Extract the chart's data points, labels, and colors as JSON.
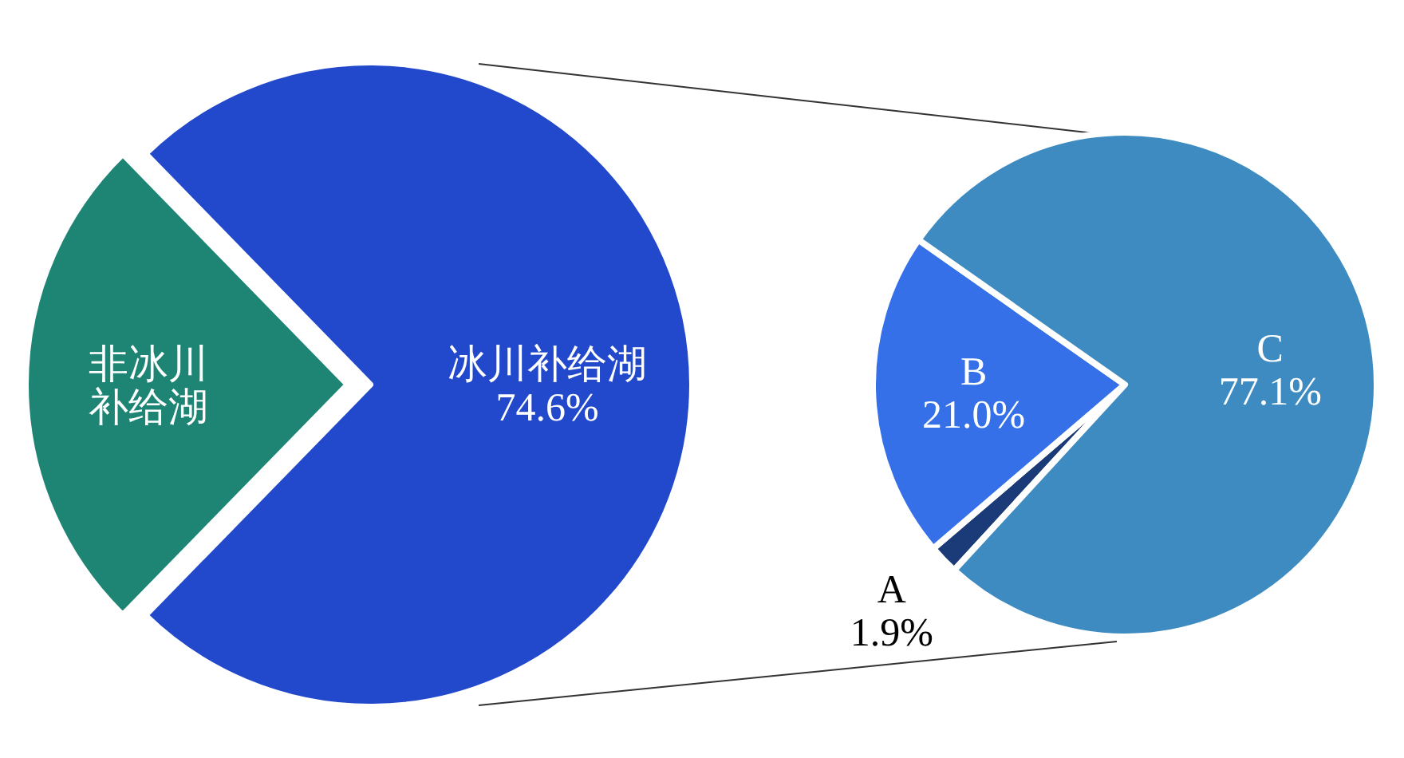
{
  "chart_data": [
    {
      "type": "pie",
      "categories": [
        "非冰川补给湖",
        "冰川补给湖"
      ],
      "values": [
        25.4,
        74.6
      ],
      "colors": [
        "#1e8575",
        "#2249cc"
      ],
      "value_labels": [
        null,
        "74.6%"
      ]
    },
    {
      "type": "pie",
      "categories": [
        "A",
        "B",
        "C"
      ],
      "values": [
        1.9,
        21.0,
        77.1
      ],
      "colors": [
        "#1a3a78",
        "#3570e8",
        "#3d8bc0"
      ],
      "value_labels": [
        "1.9%",
        "21.0%",
        "77.1%"
      ]
    }
  ]
}
